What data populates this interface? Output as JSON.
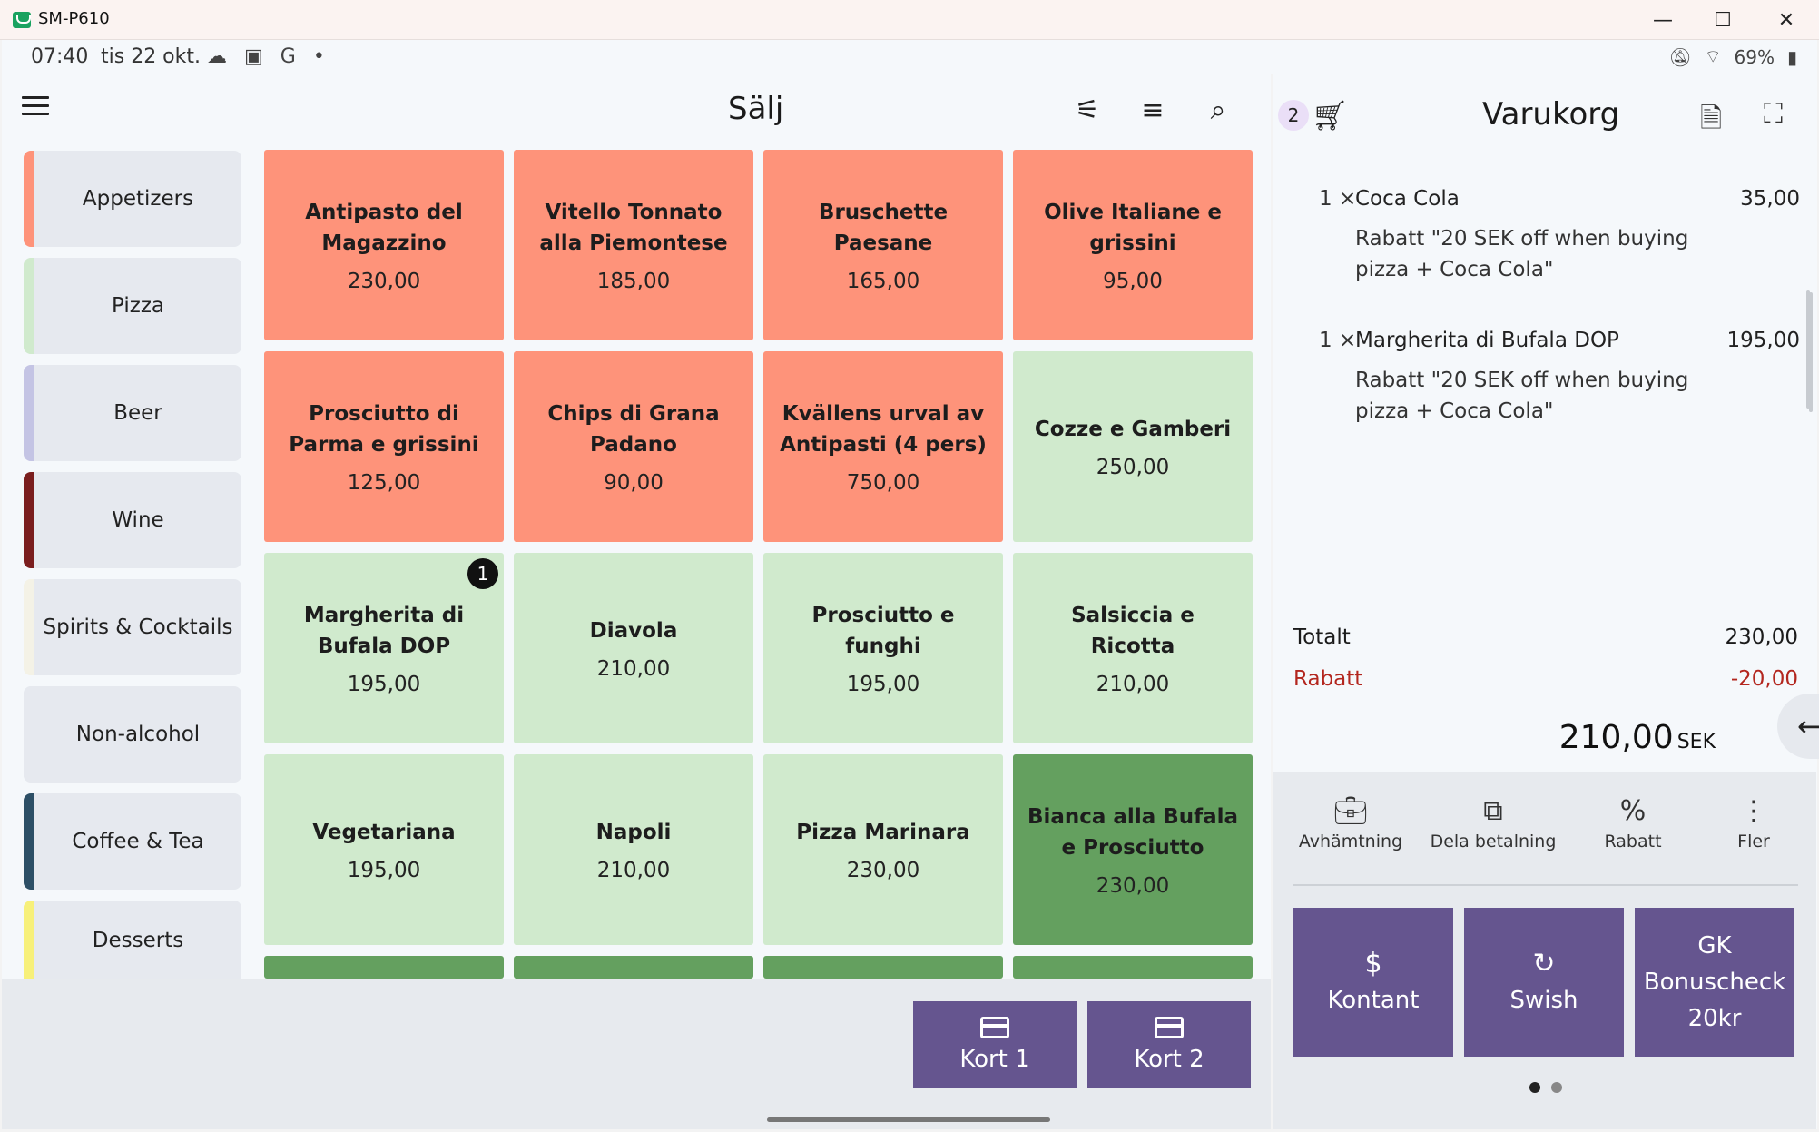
{
  "window": {
    "title": "SM-P610",
    "minimize": "—",
    "maximize": "☐",
    "close": "✕"
  },
  "status_bar": {
    "time": "07:40",
    "date": "tis 22 okt.",
    "notification_icons": "☁ ▣ G •",
    "battery": "69%"
  },
  "sell": {
    "title": "Sälj",
    "tools": [
      "tune-icon",
      "sort-icon",
      "search-icon"
    ]
  },
  "categories": [
    {
      "label": "Appetizers",
      "color": "#fe937a"
    },
    {
      "label": "Pizza",
      "color": "#d0eacd"
    },
    {
      "label": "Beer",
      "color": "#c4c4e4"
    },
    {
      "label": "Wine",
      "color": "#7a1e1e"
    },
    {
      "label": "Spirits & Cocktails",
      "color": "#f4f2e6"
    },
    {
      "label": "Non-alcohol",
      "color": "#e6e9ef"
    },
    {
      "label": "Coffee & Tea",
      "color": "#2d4f66"
    },
    {
      "label": "Desserts",
      "color": "#f7f07a"
    }
  ],
  "products": [
    {
      "name": "Antipasto del Magazzino",
      "price": "230,00",
      "color": "orange"
    },
    {
      "name": "Vitello Tonnato alla Piemontese",
      "price": "185,00",
      "color": "orange"
    },
    {
      "name": "Bruschette Paesane",
      "price": "165,00",
      "color": "orange"
    },
    {
      "name": "Olive Italiane e grissini",
      "price": "95,00",
      "color": "orange"
    },
    {
      "name": "Prosciutto di Parma e grissini",
      "price": "125,00",
      "color": "orange"
    },
    {
      "name": "Chips di Grana Padano",
      "price": "90,00",
      "color": "orange"
    },
    {
      "name": "Kvällens urval av Antipasti (4 pers)",
      "price": "750,00",
      "color": "orange"
    },
    {
      "name": "Cozze e Gamberi",
      "price": "250,00",
      "color": "light"
    },
    {
      "name": "Margherita di Bufala DOP",
      "price": "195,00",
      "color": "light",
      "badge": "1"
    },
    {
      "name": "Diavola",
      "price": "210,00",
      "color": "light"
    },
    {
      "name": "Prosciutto e funghi",
      "price": "195,00",
      "color": "light"
    },
    {
      "name": "Salsiccia e Ricotta",
      "price": "210,00",
      "color": "light"
    },
    {
      "name": "Vegetariana",
      "price": "195,00",
      "color": "light"
    },
    {
      "name": "Napoli",
      "price": "210,00",
      "color": "light"
    },
    {
      "name": "Pizza Marinara",
      "price": "230,00",
      "color": "light"
    },
    {
      "name": "Bianca alla Bufala e Prosciutto",
      "price": "230,00",
      "color": "dark"
    }
  ],
  "card_buttons": [
    "Kort 1",
    "Kort 2"
  ],
  "cart": {
    "count": "2",
    "title": "Varukorg",
    "lines": [
      {
        "qty": "1 ×",
        "item": "Coca Cola",
        "amount": "35,00",
        "discount": "Rabatt \"20 SEK off when buying pizza + Coca Cola\""
      },
      {
        "qty": "1 ×",
        "item": "Margherita di Bufala DOP",
        "amount": "195,00",
        "discount": "Rabatt \"20 SEK off when buying pizza + Coca Cola\""
      }
    ],
    "totalt_label": "Totalt",
    "totalt_value": "230,00",
    "rabatt_label": "Rabatt",
    "rabatt_value": "-20,00",
    "grand_total": "210,00",
    "currency": "SEK",
    "accent_red": "#b3261e"
  },
  "actions": [
    {
      "label": "Avhämtning",
      "icon": "bag-icon"
    },
    {
      "label": "Dela betalning",
      "icon": "split-payment-icon"
    },
    {
      "label": "Rabatt",
      "icon": "percent-icon"
    },
    {
      "label": "Fler",
      "icon": "more-icon"
    }
  ],
  "payments": [
    {
      "glyph": "$",
      "label": "Kontant"
    },
    {
      "glyph": "↻",
      "label": "Swish"
    },
    {
      "glyph": "",
      "label": "GK Bonuscheck 20kr"
    }
  ],
  "colors": {
    "primary_button": "#65558f",
    "tile_orange": "#fe937a",
    "tile_light": "#d0eacd",
    "tile_dark": "#64a05f"
  }
}
